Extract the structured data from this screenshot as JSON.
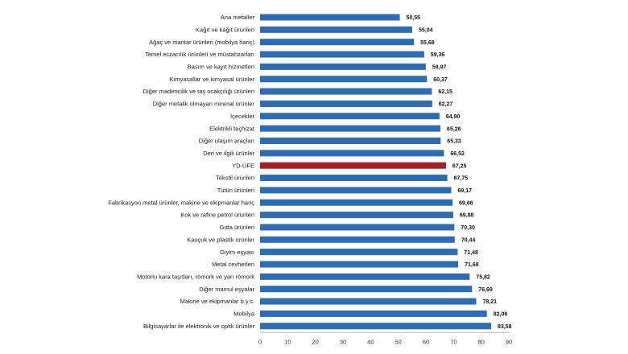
{
  "chart_data": {
    "type": "bar",
    "orientation": "horizontal",
    "categories": [
      "Ana metaller",
      "Kağıt ve kağıt ürünleri",
      "Ağaç ve mantar ürünleri (mobilya hariç)",
      "Temel eczacılık ürünleri ve müstahzarları",
      "Basım ve kayıt hizmetleri",
      "Kimyasallar ve kimyasal ürünler",
      "Diğer madencilik ve taş ocakçılığı ürünleri",
      "Diğer metalik olmayan mineral ürünler",
      "İçecekler",
      "Elektrikli teçhizat",
      "Diğer ulaşım araçları",
      "Deri ve ilgili ürünler",
      "YD-ÜFE",
      "Tekstil ürünleri",
      "Tütün ürünleri",
      "Fabrikasyon metal ürünler, makine ve ekipmanlar hariç",
      "Kok ve rafine petrol ürünleri",
      "Gıda ürünleri",
      "Kauçuk ve plastik ürünler",
      "Giyim eşyası",
      "Metal cevherleri",
      "Motorlu kara taşıtları, römork ve yarı römork",
      "Diğer mamul eşyalar",
      "Makine ve ekipmanlar b.y.s.",
      "Mobilya",
      "Bilgisayarlar ile elektronik ve optik ürünler"
    ],
    "values": [
      50.55,
      55.04,
      55.68,
      59.36,
      59.97,
      60.37,
      62.15,
      62.27,
      64.9,
      65.26,
      65.33,
      66.52,
      67.25,
      67.75,
      69.17,
      69.66,
      69.88,
      70.3,
      70.44,
      71.48,
      71.68,
      75.82,
      76.69,
      78.21,
      82.06,
      83.58
    ],
    "value_labels": [
      "50,55",
      "55,04",
      "55,68",
      "59,36",
      "59,97",
      "60,37",
      "62,15",
      "62,27",
      "64,90",
      "65,26",
      "65,33",
      "66,52",
      "67,25",
      "67,75",
      "69,17",
      "69,66",
      "69,88",
      "70,30",
      "70,44",
      "71,48",
      "71,68",
      "75,82",
      "76,69",
      "78,21",
      "82,06",
      "83,58"
    ],
    "highlight_category": "YD-ÜFE",
    "xlim": [
      0,
      90
    ],
    "xticks": [
      0,
      10,
      20,
      30,
      40,
      50,
      60,
      70,
      80,
      90
    ],
    "grid": false,
    "colors": {
      "bar": "#2e6db4",
      "highlight": "#a31f24"
    }
  }
}
